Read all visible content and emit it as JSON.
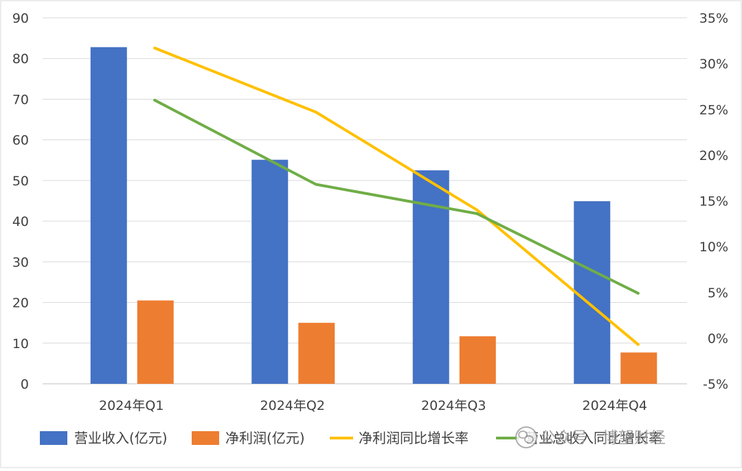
{
  "chart_data": {
    "type": "bar",
    "categories": [
      "2024年Q1",
      "2024年Q2",
      "2024年Q3",
      "2024年Q4"
    ],
    "left_axis": {
      "range": [
        0,
        90
      ],
      "ticks": [
        0,
        10,
        20,
        30,
        40,
        50,
        60,
        70,
        80,
        90
      ],
      "tick_labels": [
        "0",
        "10",
        "20",
        "30",
        "40",
        "50",
        "60",
        "70",
        "80",
        "90"
      ]
    },
    "right_axis": {
      "range": [
        -5,
        35
      ],
      "ticks": [
        -5,
        0,
        5,
        10,
        15,
        20,
        25,
        30,
        35
      ],
      "tick_labels": [
        "-5%",
        "0%",
        "5%",
        "10%",
        "15%",
        "20%",
        "25%",
        "30%",
        "35%"
      ]
    },
    "grid": true,
    "legend_position": "bottom",
    "series": [
      {
        "name": "营业收入(亿元)",
        "type": "bar",
        "axis": "left",
        "color": "#4472C4",
        "values": [
          82.8,
          55.1,
          52.5,
          44.9
        ]
      },
      {
        "name": "净利润(亿元)",
        "type": "bar",
        "axis": "left",
        "color": "#ED7D31",
        "values": [
          20.5,
          15.0,
          11.7,
          7.7
        ]
      },
      {
        "name": "净利润同比增长率",
        "type": "line",
        "axis": "right",
        "color": "#FFC000",
        "values": [
          31.7,
          24.7,
          14.0,
          -0.7
        ]
      },
      {
        "name": "营业总收入同比增长率",
        "type": "line",
        "axis": "right",
        "color": "#70AD47",
        "values": [
          26.0,
          16.8,
          13.6,
          4.9
        ]
      }
    ]
  },
  "watermark": {
    "text": "公众号 · 博望财经"
  }
}
